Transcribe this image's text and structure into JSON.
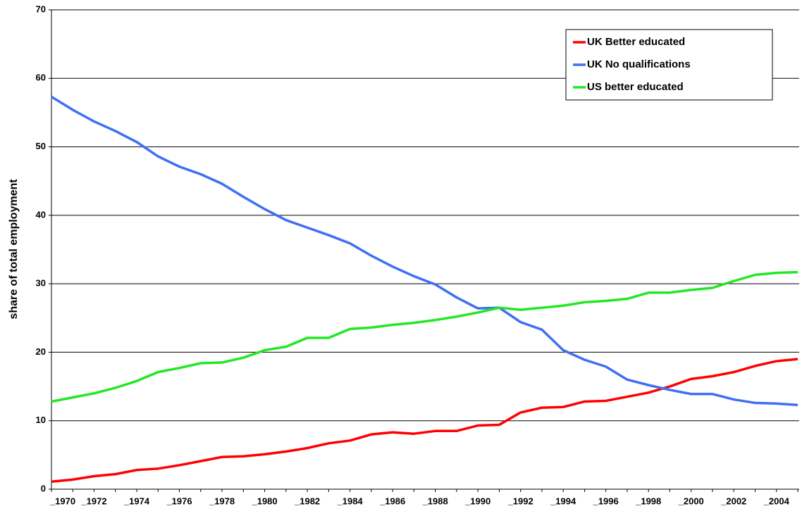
{
  "chart_data": {
    "type": "line",
    "y_label": "share of total employment",
    "categories": [
      "_1970",
      null,
      "_1972",
      null,
      "_1974",
      null,
      "_1976",
      null,
      "_1978",
      null,
      "_1980",
      null,
      "_1982",
      null,
      "_1984",
      null,
      "_1986",
      null,
      "_1988",
      null,
      "_1990",
      null,
      "_1992",
      null,
      "_1994",
      null,
      "_1996",
      null,
      "_1998",
      null,
      "_2000",
      null,
      "_2002",
      null,
      "_2004",
      null
    ],
    "series": [
      {
        "name": "UK Better educated",
        "color": "#ff0000",
        "values": [
          1.1,
          1.4,
          1.9,
          2.2,
          2.8,
          3.0,
          3.5,
          4.1,
          4.7,
          4.8,
          5.1,
          5.5,
          6.0,
          6.7,
          7.1,
          8.0,
          8.3,
          8.1,
          8.5,
          8.5,
          9.3,
          9.4,
          11.2,
          11.9,
          12.0,
          12.8,
          12.9,
          13.5,
          14.1,
          15.0,
          16.1,
          16.5,
          17.1,
          18.0,
          18.7,
          19.0
        ]
      },
      {
        "name": "UK No qualifications",
        "color": "#3f6ff5",
        "values": [
          57.3,
          55.4,
          53.7,
          52.3,
          50.7,
          48.6,
          47.1,
          46.0,
          44.6,
          42.7,
          40.9,
          39.3,
          38.2,
          37.1,
          35.9,
          34.1,
          32.5,
          31.1,
          29.9,
          28.0,
          26.4,
          26.5,
          24.4,
          23.3,
          20.3,
          18.9,
          17.9,
          16.0,
          15.2,
          14.5,
          13.9,
          13.9,
          13.1,
          12.6,
          12.5,
          12.3
        ]
      },
      {
        "name": "US better educated",
        "color": "#22e822",
        "values": [
          12.8,
          13.4,
          14.0,
          14.8,
          15.8,
          17.1,
          17.7,
          18.4,
          18.5,
          19.2,
          20.3,
          20.8,
          22.1,
          22.1,
          23.4,
          23.6,
          24.0,
          24.3,
          24.7,
          25.2,
          25.8,
          26.5,
          26.2,
          26.5,
          26.8,
          27.3,
          27.5,
          27.8,
          28.7,
          28.7,
          29.1,
          29.4,
          30.4,
          31.3,
          31.6,
          31.7
        ]
      }
    ],
    "ylim": [
      0,
      70
    ],
    "yticks": [
      0,
      10,
      20,
      30,
      40,
      50,
      60,
      70
    ],
    "grid": true,
    "legend": "top-right"
  }
}
